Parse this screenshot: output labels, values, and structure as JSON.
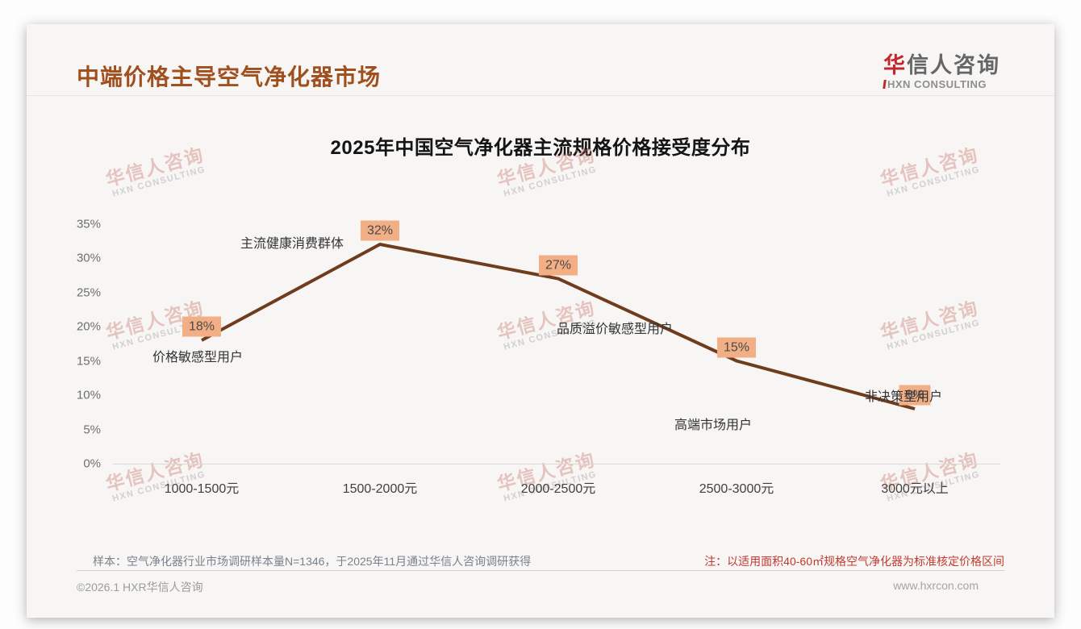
{
  "page": {
    "title": "中端价格主导空气净化器市场",
    "logo": {
      "cn_first": "华",
      "cn_rest": "信人咨询",
      "en": "HXN CONSULTING"
    },
    "watermark": {
      "line1": "华信人咨询",
      "line2": "HXN CONSULTING"
    },
    "notes": {
      "sample": "样本：空气净化器行业市场调研样本量N=1346，于2025年11月通过华信人咨询调研获得",
      "pricing": "注：以适用面积40-60㎡规格空气净化器为标准核定价格区间"
    },
    "footer": {
      "copyright": "©2026.1 HXR华信人咨询",
      "website": "www.hxrcon.com"
    }
  },
  "chart_data": {
    "type": "line",
    "title": "2025年中国空气净化器主流规格价格接受度分布",
    "categories": [
      "1000-1500元",
      "1500-2000元",
      "2000-2500元",
      "2500-3000元",
      "3000元以上"
    ],
    "values": [
      18,
      32,
      27,
      15,
      8
    ],
    "data_labels": [
      "18%",
      "32%",
      "27%",
      "15%",
      "8%"
    ],
    "annotations": [
      "价格敏感型用户",
      "主流健康消费群体",
      "品质溢价敏感型用户",
      "高端市场用户",
      "非决策型用户"
    ],
    "xlabel": "",
    "ylabel": "",
    "y_ticks": [
      "0%",
      "5%",
      "10%",
      "15%",
      "20%",
      "25%",
      "30%",
      "35%"
    ],
    "y_tick_values": [
      0,
      5,
      10,
      15,
      20,
      25,
      30,
      35
    ],
    "ylim": [
      0,
      35
    ],
    "grid": false,
    "legend": false,
    "colors": {
      "line": "#703c1e",
      "label_bg": "#f2ae85",
      "label_text": "#4a4a4a",
      "title_accent": "#a0501e",
      "note_red": "#c23a2f",
      "logo_red": "#c1272d"
    }
  }
}
